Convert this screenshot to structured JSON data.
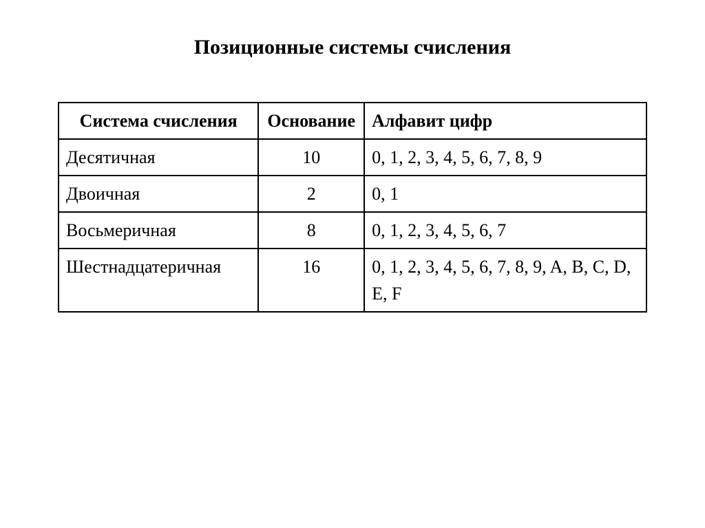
{
  "title": "Позиционные системы счисления",
  "table": {
    "headers": {
      "system": "Система счисления",
      "base": "Основание",
      "alphabet": "Алфавит цифр"
    },
    "rows": [
      {
        "system": "Десятичная",
        "base": "10",
        "alphabet": "0, 1, 2, 3, 4, 5, 6, 7, 8, 9"
      },
      {
        "system": "Двоичная",
        "base": "2",
        "alphabet": "0, 1"
      },
      {
        "system": "Восьмеричная",
        "base": "8",
        "alphabet": "0, 1, 2, 3, 4, 5, 6, 7"
      },
      {
        "system": "Шестнадцатеричная",
        "base": "16",
        "alphabet": "0, 1, 2, 3, 4, 5, 6, 7, 8, 9, A, B, C, D, E, F"
      }
    ]
  },
  "styling": {
    "background_color": "#ffffff",
    "text_color": "#000000",
    "border_color": "#000000",
    "font_family": "Times New Roman",
    "title_fontsize": 30,
    "cell_fontsize": 26,
    "title_weight": "bold",
    "header_weight": "bold",
    "border_width": 2,
    "column_widths": [
      "34%",
      "18%",
      "48%"
    ],
    "column_alignments": [
      "left",
      "center",
      "left"
    ],
    "header_alignment": "center"
  }
}
